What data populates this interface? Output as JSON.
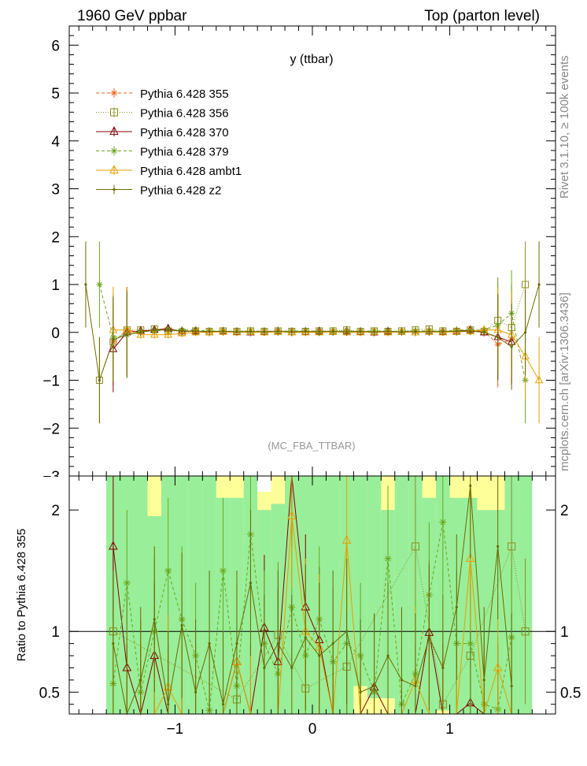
{
  "header": {
    "left_title": "1960 GeV ppbar",
    "right_title": "Top (parton level)"
  },
  "plot_title": "y (ttbar)",
  "watermark": "(MC_FBA_TTBAR)",
  "side_labels": {
    "rivet": "Rivet 3.1.10, ≥ 100k events",
    "mcplots": "mcplots.cern.ch [arXiv:1306.3436]"
  },
  "ratio_ylabel": "Ratio to Pythia 6.428 355",
  "colors": {
    "band_green": "#99ee99",
    "band_yellow": "#ffff99",
    "axis": "#000000"
  },
  "chart_data": [
    {
      "type": "line",
      "panel": "main",
      "xlim": [
        -1.77,
        1.77
      ],
      "ylim": [
        -3,
        6.4
      ],
      "yticks": [
        "−2",
        "−1",
        "0",
        "1",
        "2",
        "3",
        "4",
        "5",
        "6"
      ],
      "yticks_cut": [
        "−3"
      ],
      "legend_position": "top-left",
      "series": [
        {
          "name": "Pythia 6.428 355",
          "color": "#e8641e",
          "dash": "4,3",
          "marker": "star",
          "x": [
            -1.45,
            -1.35,
            -1.25,
            -1.15,
            -1.05,
            -0.95,
            -0.85,
            -0.75,
            -0.65,
            -0.55,
            -0.45,
            -0.35,
            -0.25,
            -0.15,
            -0.05,
            0.05,
            0.15,
            0.25,
            0.35,
            0.45,
            0.55,
            0.65,
            0.75,
            0.85,
            0.95,
            1.05,
            1.15,
            1.25,
            1.35,
            1.45
          ],
          "y": [
            -0.2,
            0.05,
            0.0,
            0.05,
            0.05,
            0.03,
            0.03,
            0.02,
            0.02,
            0.02,
            0.03,
            0.02,
            0.03,
            0.02,
            0.03,
            0.03,
            0.02,
            0.03,
            0.02,
            0.03,
            0.02,
            0.02,
            0.02,
            0.03,
            0.02,
            0.03,
            0.05,
            0.03,
            -0.25,
            -0.15
          ]
        },
        {
          "name": "Pythia 6.428 356",
          "color": "#8c8c1e",
          "dash": "1,2",
          "marker": "square",
          "x": [
            -1.55,
            -1.45,
            -1.35,
            -1.25,
            -1.15,
            -1.05,
            -0.95,
            -0.85,
            -0.75,
            -0.65,
            -0.55,
            -0.45,
            -0.35,
            -0.25,
            -0.15,
            -0.05,
            0.05,
            0.15,
            0.25,
            0.35,
            0.45,
            0.55,
            0.65,
            0.75,
            0.85,
            0.95,
            1.05,
            1.15,
            1.25,
            1.35,
            1.45,
            1.55
          ],
          "y": [
            -1.0,
            -0.2,
            0.05,
            0.05,
            0.07,
            0.03,
            0.0,
            0.03,
            0.02,
            0.03,
            0.02,
            0.03,
            0.02,
            0.03,
            0.02,
            0.02,
            0.03,
            0.03,
            0.05,
            0.02,
            0.03,
            0.02,
            0.03,
            0.05,
            0.07,
            0.03,
            0.02,
            0.05,
            0.02,
            0.25,
            0.1,
            1.0
          ]
        },
        {
          "name": "Pythia 6.428 370",
          "color": "#800000",
          "dash": "",
          "marker": "triangle",
          "x": [
            -1.45,
            -1.35,
            -1.25,
            -1.15,
            -1.05,
            -0.95,
            -0.85,
            -0.75,
            -0.65,
            -0.55,
            -0.45,
            -0.35,
            -0.25,
            -0.15,
            -0.05,
            0.05,
            0.15,
            0.25,
            0.35,
            0.45,
            0.55,
            0.65,
            0.75,
            0.85,
            0.95,
            1.05,
            1.15,
            1.25,
            1.35,
            1.45
          ],
          "y": [
            -0.35,
            0.0,
            0.03,
            0.05,
            0.08,
            0.02,
            0.03,
            0.0,
            0.02,
            0.01,
            0.0,
            0.01,
            0.02,
            0.0,
            0.01,
            0.02,
            0.01,
            0.02,
            0.01,
            0.0,
            0.02,
            0.01,
            0.0,
            0.02,
            0.01,
            0.02,
            0.05,
            0.0,
            -0.1,
            -0.2
          ]
        },
        {
          "name": "Pythia 6.428 379",
          "color": "#6aa81e",
          "dash": "4,3",
          "marker": "star",
          "x": [
            -1.55,
            -1.45,
            -1.35,
            -1.25,
            -1.15,
            -1.05,
            -0.95,
            -0.85,
            -0.75,
            -0.65,
            -0.55,
            -0.45,
            -0.35,
            -0.25,
            -0.15,
            -0.05,
            0.05,
            0.15,
            0.25,
            0.35,
            0.45,
            0.55,
            0.65,
            0.75,
            0.85,
            0.95,
            1.05,
            1.15,
            1.25,
            1.35,
            1.45,
            1.55
          ],
          "y": [
            1.0,
            -0.1,
            -0.05,
            0.02,
            0.03,
            0.05,
            0.05,
            0.05,
            0.03,
            0.03,
            0.02,
            0.03,
            0.02,
            0.02,
            0.03,
            0.03,
            0.02,
            0.02,
            0.03,
            0.02,
            0.03,
            0.03,
            0.02,
            0.03,
            0.03,
            0.02,
            0.05,
            0.05,
            0.05,
            0.15,
            0.4,
            -1.0
          ]
        },
        {
          "name": "Pythia 6.428 ambt1",
          "color": "#e6a000",
          "dash": "",
          "marker": "triangle",
          "x": [
            -1.45,
            -1.35,
            -1.25,
            -1.15,
            -1.05,
            -0.95,
            -0.85,
            -0.75,
            -0.65,
            -0.55,
            -0.45,
            -0.35,
            -0.25,
            -0.15,
            -0.05,
            0.05,
            0.15,
            0.25,
            0.35,
            0.45,
            0.55,
            0.65,
            0.75,
            0.85,
            0.95,
            1.05,
            1.15,
            1.25,
            1.35,
            1.45,
            1.55,
            1.65
          ],
          "y": [
            0.05,
            0.05,
            -0.05,
            -0.05,
            -0.05,
            -0.02,
            0.0,
            0.0,
            0.01,
            0.0,
            0.01,
            0.0,
            0.01,
            0.0,
            0.0,
            0.0,
            0.01,
            0.0,
            0.0,
            0.01,
            0.0,
            0.01,
            0.0,
            0.01,
            0.0,
            0.01,
            0.02,
            0.05,
            0.05,
            -0.05,
            -0.5,
            -1.0
          ]
        },
        {
          "name": "Pythia 6.428 z2",
          "color": "#6b6b00",
          "dash": "",
          "marker": "dot",
          "x": [
            -1.65,
            -1.55,
            -1.45,
            -1.35,
            -1.25,
            -1.15,
            -1.05,
            -0.95,
            -0.85,
            -0.75,
            -0.65,
            -0.55,
            -0.45,
            -0.35,
            -0.25,
            -0.15,
            -0.05,
            0.05,
            0.15,
            0.25,
            0.35,
            0.45,
            0.55,
            0.65,
            0.75,
            0.85,
            0.95,
            1.05,
            1.15,
            1.25,
            1.35,
            1.45,
            1.55,
            1.65
          ],
          "y": [
            1.0,
            -1.0,
            -0.15,
            -0.05,
            0.0,
            0.05,
            0.05,
            0.03,
            0.02,
            0.02,
            0.02,
            0.01,
            0.02,
            0.01,
            0.02,
            0.01,
            0.02,
            0.01,
            0.02,
            0.01,
            0.02,
            0.01,
            0.02,
            0.01,
            0.02,
            0.01,
            0.02,
            0.02,
            0.03,
            0.0,
            -0.1,
            -0.3,
            0.0,
            1.0
          ]
        }
      ]
    },
    {
      "type": "line",
      "panel": "ratio",
      "xlabel": "",
      "ylabel": "Ratio to Pythia 6.428 355",
      "xlim": [
        -1.77,
        1.77
      ],
      "ylim": [
        0.32,
        2.28
      ],
      "xticks": [
        "−1",
        "0",
        "1"
      ],
      "yticks": [
        "0.5",
        "1",
        "2"
      ],
      "reference": 1,
      "series": [
        {
          "name": "Pythia 6.428 356",
          "color": "#8c8c1e",
          "dash": "1,2",
          "marker": "square",
          "x": [
            -1.45,
            -0.55,
            -0.25,
            -0.05,
            0.25,
            0.75,
            0.95,
            1.15,
            1.45,
            1.55
          ],
          "y": [
            1.0,
            0.44,
            0.97,
            0.53,
            0.71,
            1.7,
            0.4,
            0.8,
            1.7,
            1.0
          ]
        },
        {
          "name": "Pythia 6.428 370",
          "color": "#800000",
          "dash": "",
          "marker": "triangle",
          "x": [
            -1.45,
            -1.35,
            -1.25,
            -1.15,
            -1.05,
            -0.95,
            -0.85,
            -0.75,
            -0.65,
            -0.55,
            -0.45,
            -0.35,
            -0.25,
            -0.15,
            -0.05,
            0.05,
            0.15,
            0.25,
            0.35,
            0.45,
            0.55,
            0.65,
            0.75,
            0.85,
            0.95,
            1.05,
            1.15,
            1.25,
            1.35,
            1.45
          ],
          "y": [
            1.7,
            0.7,
            0.3,
            0.8,
            0.3,
            0.3,
            0.3,
            0.3,
            0.3,
            0.75,
            0.3,
            1.03,
            0.75,
            2.3,
            1.2,
            0.93,
            0.3,
            0.3,
            0.3,
            0.54,
            0.3,
            0.3,
            0.3,
            0.99,
            0.3,
            0.3,
            0.41,
            0.3,
            0.3,
            0.3
          ]
        },
        {
          "name": "Pythia 6.428 379",
          "color": "#6aa81e",
          "dash": "4,3",
          "marker": "star",
          "x": [
            -1.45,
            -1.35,
            -1.25,
            -1.15,
            -1.05,
            -0.95,
            -0.85,
            -0.75,
            -0.65,
            -0.55,
            -0.45,
            -0.35,
            -0.25,
            -0.15,
            -0.05,
            0.05,
            0.15,
            0.25,
            0.35,
            0.45,
            0.55,
            0.65,
            0.75,
            0.85,
            0.95,
            1.05,
            1.15,
            1.25,
            1.35,
            1.45
          ],
          "y": [
            0.57,
            1.4,
            0.5,
            1.0,
            1.5,
            1.1,
            0.8,
            0.35,
            1.5,
            0.55,
            1.8,
            0.9,
            0.65,
            1.2,
            0.8,
            1.1,
            0.75,
            0.9,
            0.8,
            0.5,
            1.6,
            0.4,
            0.65,
            1.3,
            1.9,
            0.9,
            0.9,
            0.4,
            0.36,
            0.95
          ]
        },
        {
          "name": "Pythia 6.428 ambt1",
          "color": "#e6a000",
          "dash": "",
          "marker": "triangle",
          "x": [
            -1.45,
            -1.35,
            -1.25,
            -1.15,
            -1.05,
            -0.95,
            -0.85,
            -0.75,
            -0.65,
            -0.55,
            -0.45,
            -0.35,
            -0.25,
            -0.15,
            -0.05,
            0.05,
            0.15,
            0.25,
            0.35,
            0.45,
            0.55,
            0.65,
            0.75,
            0.85,
            0.95,
            1.05,
            1.15,
            1.25,
            1.35,
            1.45
          ],
          "y": [
            0.3,
            0.3,
            0.3,
            0.3,
            0.54,
            0.3,
            0.3,
            0.3,
            0.3,
            0.75,
            0.3,
            0.3,
            0.3,
            1.95,
            1.0,
            0.87,
            0.3,
            1.75,
            0.3,
            0.3,
            0.3,
            0.3,
            0.6,
            0.3,
            0.3,
            0.3,
            1.6,
            0.3,
            0.7,
            0.3
          ]
        },
        {
          "name": "Pythia 6.428 z2",
          "color": "#6b6b00",
          "dash": "",
          "marker": "dot",
          "x": [
            -1.45,
            -1.35,
            -1.25,
            -1.15,
            -1.05,
            -0.95,
            -0.85,
            -0.75,
            -0.65,
            -0.55,
            -0.45,
            -0.35,
            -0.25,
            -0.15,
            -0.05,
            0.05,
            0.15,
            0.25,
            0.35,
            0.45,
            0.55,
            0.65,
            0.75,
            0.85,
            0.95,
            1.05,
            1.15,
            1.25,
            1.35,
            1.45
          ],
          "y": [
            0.9,
            0.3,
            0.6,
            1.1,
            0.4,
            1.05,
            0.5,
            0.9,
            0.4,
            0.9,
            1.4,
            0.7,
            0.9,
            0.7,
            0.95,
            0.8,
            0.9,
            1.0,
            0.5,
            0.55,
            0.8,
            0.6,
            0.55,
            0.95,
            0.7,
            1.2,
            2.2,
            0.6,
            1.7,
            0.55
          ]
        }
      ],
      "bands": {
        "x_edges": [
          -1.5,
          -1.4,
          -1.3,
          -1.2,
          -1.1,
          -1.0,
          -0.9,
          -0.8,
          -0.7,
          -0.6,
          -0.5,
          -0.4,
          -0.3,
          -0.2,
          -0.1,
          0.0,
          0.1,
          0.2,
          0.3,
          0.4,
          0.5,
          0.6,
          0.7,
          0.8,
          0.9,
          1.0,
          1.1,
          1.2,
          1.3,
          1.4,
          1.5,
          1.6
        ],
        "green_hi": [
          2.3,
          2.3,
          2.3,
          1.95,
          2.3,
          2.3,
          2.3,
          2.3,
          2.1,
          2.1,
          2.3,
          2.0,
          2.05,
          2.3,
          2.3,
          2.3,
          2.3,
          2.3,
          2.3,
          2.3,
          2.0,
          2.3,
          2.3,
          2.1,
          2.3,
          2.1,
          2.1,
          2.0,
          2.0,
          2.3,
          2.3
        ],
        "green_lo": [
          0.3,
          0.3,
          0.3,
          0.3,
          0.3,
          0.3,
          0.3,
          0.3,
          0.3,
          0.3,
          0.3,
          0.3,
          0.3,
          0.3,
          0.3,
          0.3,
          0.3,
          0.3,
          0.55,
          0.45,
          0.45,
          0.3,
          0.3,
          0.3,
          0.35,
          0.3,
          0.3,
          0.3,
          0.3,
          0.3,
          0.3
        ],
        "yellow_hi": [
          2.3,
          2.3,
          2.3,
          2.3,
          2.3,
          2.3,
          2.3,
          2.3,
          2.3,
          2.3,
          2.3,
          2.15,
          2.3,
          2.3,
          2.3,
          2.3,
          2.3,
          2.3,
          2.3,
          2.3,
          2.3,
          2.3,
          2.3,
          2.3,
          2.3,
          2.3,
          2.3,
          2.3,
          2.3,
          2.3,
          2.3
        ],
        "yellow_lo": [
          0.3,
          0.3,
          0.3,
          0.3,
          0.3,
          0.3,
          0.3,
          0.3,
          0.3,
          0.3,
          0.3,
          0.3,
          0.3,
          0.3,
          0.3,
          0.3,
          0.3,
          0.3,
          0.3,
          0.3,
          0.3,
          0.3,
          0.3,
          0.3,
          0.3,
          0.3,
          0.3,
          0.3,
          0.3,
          0.3,
          0.3
        ]
      }
    }
  ]
}
